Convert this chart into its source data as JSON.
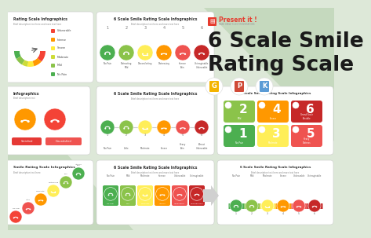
{
  "bg_color": "#dde8d8",
  "title_line1": "6 Scale Smile",
  "title_line2": "Rating Scale",
  "title_color": "#1a1a1a",
  "brand_name": "Present it !",
  "brand_sub": "MAKE GREAT SLIDE PRESENTATIONS",
  "brand_color": "#e63b2e",
  "face_colors": [
    "#4caf50",
    "#8bc34a",
    "#ffee58",
    "#ff9800",
    "#ef5350",
    "#c62828"
  ],
  "face_colors_alt": [
    "#4caf50",
    "#8bc34a",
    "#ffee58",
    "#ff9800",
    "#ef5350",
    "#b71c1c"
  ],
  "smile_labels": [
    "No Pain",
    "Distracting\nMild",
    "Discomforting",
    "Distressing",
    "Intense\nPain",
    "Unimaginable\nUnbearable"
  ],
  "nums": [
    "1",
    "2",
    "3",
    "4",
    "5",
    "6"
  ],
  "gauge_colors": [
    "#4caf50",
    "#8bc34a",
    "#cddc39",
    "#ffeb3b",
    "#ff9800",
    "#f44336"
  ],
  "legend_labels": [
    "No Pain",
    "Mild",
    "Moderate",
    "Severe",
    "Intense",
    "Unbearable"
  ],
  "row3_labels": [
    "No Pain",
    "Mild",
    "Moderate",
    "Intense",
    "Unbearable",
    "Unimaginable"
  ],
  "stair_labels": [
    "No Pain",
    "Little",
    "Moderate",
    "Distressing",
    "Pain",
    "Intense Pain"
  ],
  "icon_google": "#f4b400",
  "icon_ppt": "#d04a37",
  "icon_keynote": "#5b9bd5",
  "slide_title": "6 Scale Smile Rating Scale Infographics",
  "slide_subtitle": "Brief description text here and more text here",
  "white": "#ffffff",
  "light_border": "#dddddd",
  "text_dark": "#333333",
  "text_gray": "#888888"
}
